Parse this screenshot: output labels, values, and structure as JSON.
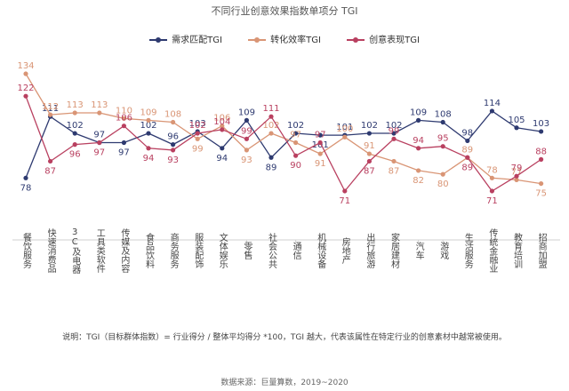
{
  "chart_data": {
    "type": "line",
    "title": "不同行业创意效果指数单项分 TGI",
    "categories": [
      "餐饮服务",
      "快速消费品",
      "3C及电器",
      "工具类软件",
      "传媒及内容",
      "食品饮料",
      "商务服务",
      "服装配饰",
      "文体娱乐",
      "零售",
      "社会公共",
      "通信",
      "机械设备",
      "房地产",
      "出行旅游",
      "家居建材",
      "汽车",
      "游戏",
      "生活服务",
      "传统金融业",
      "教育培训",
      "招商加盟"
    ],
    "series": [
      {
        "name": "需求匹配TGI",
        "color": "#2e3a70",
        "values": [
          78,
          111,
          102,
          97,
          97,
          102,
          96,
          103,
          94,
          109,
          89,
          102,
          101,
          101,
          102,
          102,
          109,
          108,
          98,
          114,
          105,
          103
        ]
      },
      {
        "name": "转化效率TGI",
        "color": "#d99575",
        "values": [
          134,
          112,
          113,
          113,
          110,
          109,
          108,
          99,
          106,
          93,
          102,
          97,
          91,
          100,
          91,
          87,
          82,
          80,
          89,
          78,
          77,
          75
        ]
      },
      {
        "name": "创意表现TGI",
        "color": "#b94060",
        "values": [
          122,
          87,
          96,
          97,
          106,
          94,
          93,
          102,
          104,
          99,
          111,
          90,
          97,
          71,
          87,
          99,
          94,
          95,
          89,
          71,
          79,
          88
        ]
      }
    ],
    "ylim": [
      60,
      145
    ],
    "grid": false,
    "legend_position": "top"
  },
  "note": "说明：TGI（目标群体指数）= 行业得分 / 整体平均得分 *100，TGI 越大，代表该属性在特定行业的创意素材中越常被使用。",
  "source": "数据来源：巨量算数，2019~2020"
}
